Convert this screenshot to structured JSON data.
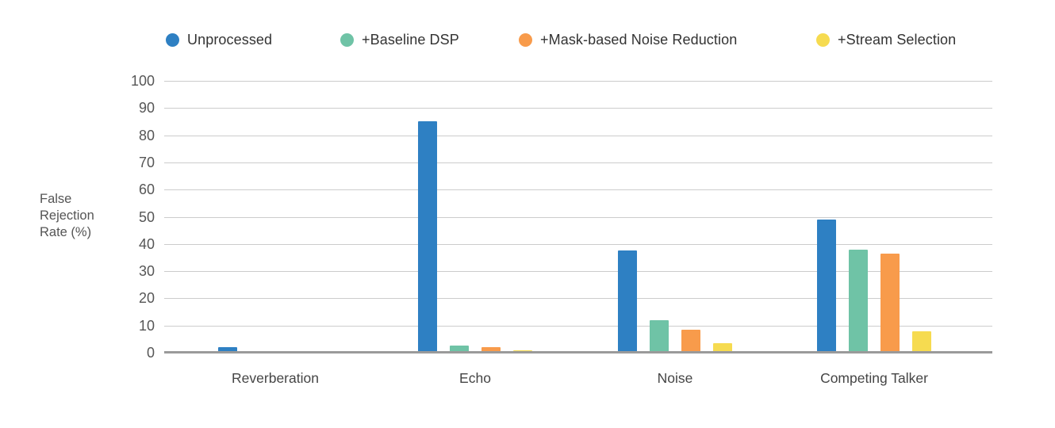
{
  "chart_data": {
    "type": "bar",
    "title": "",
    "categories": [
      "Reverberation",
      "Echo",
      "Noise",
      "Competing Talker"
    ],
    "series": [
      {
        "name": "Unprocessed",
        "color": "#2E80C3",
        "values": [
          2.0,
          85.0,
          37.5,
          49.0
        ]
      },
      {
        "name": "+Baseline DSP",
        "color": "#6FC3A6",
        "values": [
          0.6,
          2.7,
          12.0,
          38.0
        ]
      },
      {
        "name": "+Mask-based Noise Reduction",
        "color": "#F89B4B",
        "values": [
          0.7,
          2.0,
          8.5,
          36.5
        ]
      },
      {
        "name": "+Stream Selection",
        "color": "#F6DB50",
        "values": [
          0.6,
          1.0,
          3.5,
          7.8
        ]
      }
    ],
    "xlabel": "",
    "ylabel": "False Rejection Rate (%)",
    "ylabel_lines": [
      "False",
      "Rejection",
      "Rate (%)"
    ],
    "ylim": [
      0,
      100
    ],
    "yticks": [
      0,
      10,
      20,
      30,
      40,
      50,
      60,
      70,
      80,
      90,
      100
    ],
    "grid": true,
    "legend_position": "top"
  },
  "colors": {
    "background": "#ffffff",
    "gridline": "#cccccc",
    "baseline": "#9a9a9a",
    "tick_text": "#565656",
    "legend_text": "#333333",
    "category_text": "#454545",
    "axis_title_text": "#555555"
  }
}
